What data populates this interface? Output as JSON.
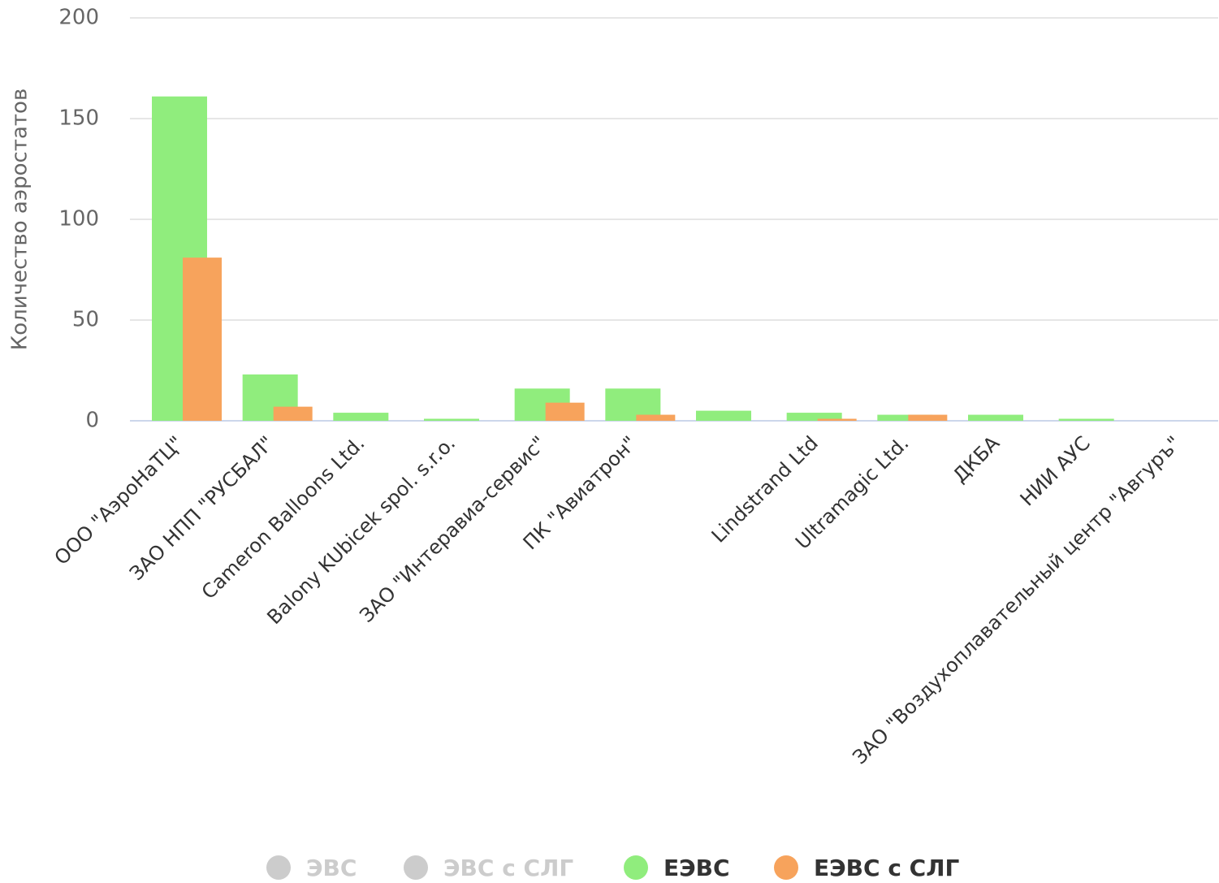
{
  "chart_data": {
    "type": "bar",
    "y_axis_label": "Количество аэростатов",
    "categories": [
      "ООО \"АэроНаТЦ\"",
      "ЗАО НПП \"РУСБАЛ\"",
      "Cameron Balloons Ltd.",
      "Balony KUbicek spol. s.r.o.",
      "ЗАО \"Интеравиа-сервис\"",
      "ПК \"Авиатрон\"",
      "",
      "Lindstrand Ltd",
      "Ultramagic Ltd.",
      "ДКБА",
      "НИИ АУС",
      "ЗАО \"Воздухоплавательный центр \"Авгуръ\""
    ],
    "series": [
      {
        "name": "ЭВС",
        "color": "#cccccc",
        "visible": false
      },
      {
        "name": "ЭВС с СЛГ",
        "color": "#cccccc",
        "visible": false
      },
      {
        "name": "ЕЭВС",
        "color": "#90ed7d",
        "visible": true,
        "values": [
          161,
          23,
          4,
          1,
          16,
          16,
          5,
          4,
          3,
          3,
          1,
          0
        ]
      },
      {
        "name": "ЕЭВС с СЛГ",
        "color": "#f7a35c",
        "visible": true,
        "values": [
          81,
          7,
          0,
          0,
          9,
          3,
          0,
          1,
          3,
          0,
          0,
          0
        ]
      }
    ],
    "ylim": [
      0,
      200
    ],
    "yticks": [
      0,
      50,
      100,
      150,
      200
    ],
    "grid": true
  }
}
